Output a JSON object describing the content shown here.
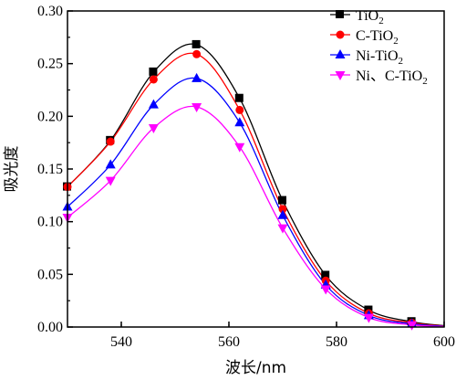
{
  "chart_data": {
    "type": "line",
    "xlabel": "波长/nm",
    "ylabel": "吸光度",
    "xlim": [
      530,
      600
    ],
    "ylim": [
      0,
      0.3
    ],
    "x_ticks": [
      540,
      560,
      580,
      600
    ],
    "y_ticks": [
      0.0,
      0.05,
      0.1,
      0.15,
      0.2,
      0.25,
      0.3
    ],
    "y_tick_labels": [
      "0.00",
      "0.05",
      "0.10",
      "0.15",
      "0.20",
      "0.25",
      "0.30"
    ],
    "grid": false,
    "legend_position": "top-right",
    "x": [
      530,
      538,
      546,
      554,
      562,
      570,
      578,
      586,
      594
    ],
    "series": [
      {
        "name": "TiO2",
        "name_base": "TiO",
        "name_sub": "2",
        "color": "#000000",
        "marker": "square",
        "values": [
          0.133,
          0.177,
          0.242,
          0.268,
          0.217,
          0.12,
          0.049,
          0.016,
          0.005
        ]
      },
      {
        "name": "C-TiO2",
        "name_base": "C-TiO",
        "name_sub": "2",
        "color": "#ff0000",
        "marker": "circle",
        "values": [
          0.133,
          0.176,
          0.235,
          0.259,
          0.206,
          0.112,
          0.044,
          0.013,
          0.004
        ]
      },
      {
        "name": "Ni-TiO2",
        "name_base": "Ni-TiO",
        "name_sub": "2",
        "color": "#0000ff",
        "marker": "triangle-up",
        "values": [
          0.114,
          0.154,
          0.211,
          0.236,
          0.194,
          0.106,
          0.04,
          0.011,
          0.003
        ]
      },
      {
        "name": "Ni、C-TiO2",
        "name_base": "Ni、C-TiO",
        "name_sub": "2",
        "color": "#ff00ff",
        "marker": "triangle-down",
        "values": [
          0.104,
          0.139,
          0.189,
          0.209,
          0.171,
          0.094,
          0.036,
          0.009,
          0.002
        ]
      }
    ]
  }
}
